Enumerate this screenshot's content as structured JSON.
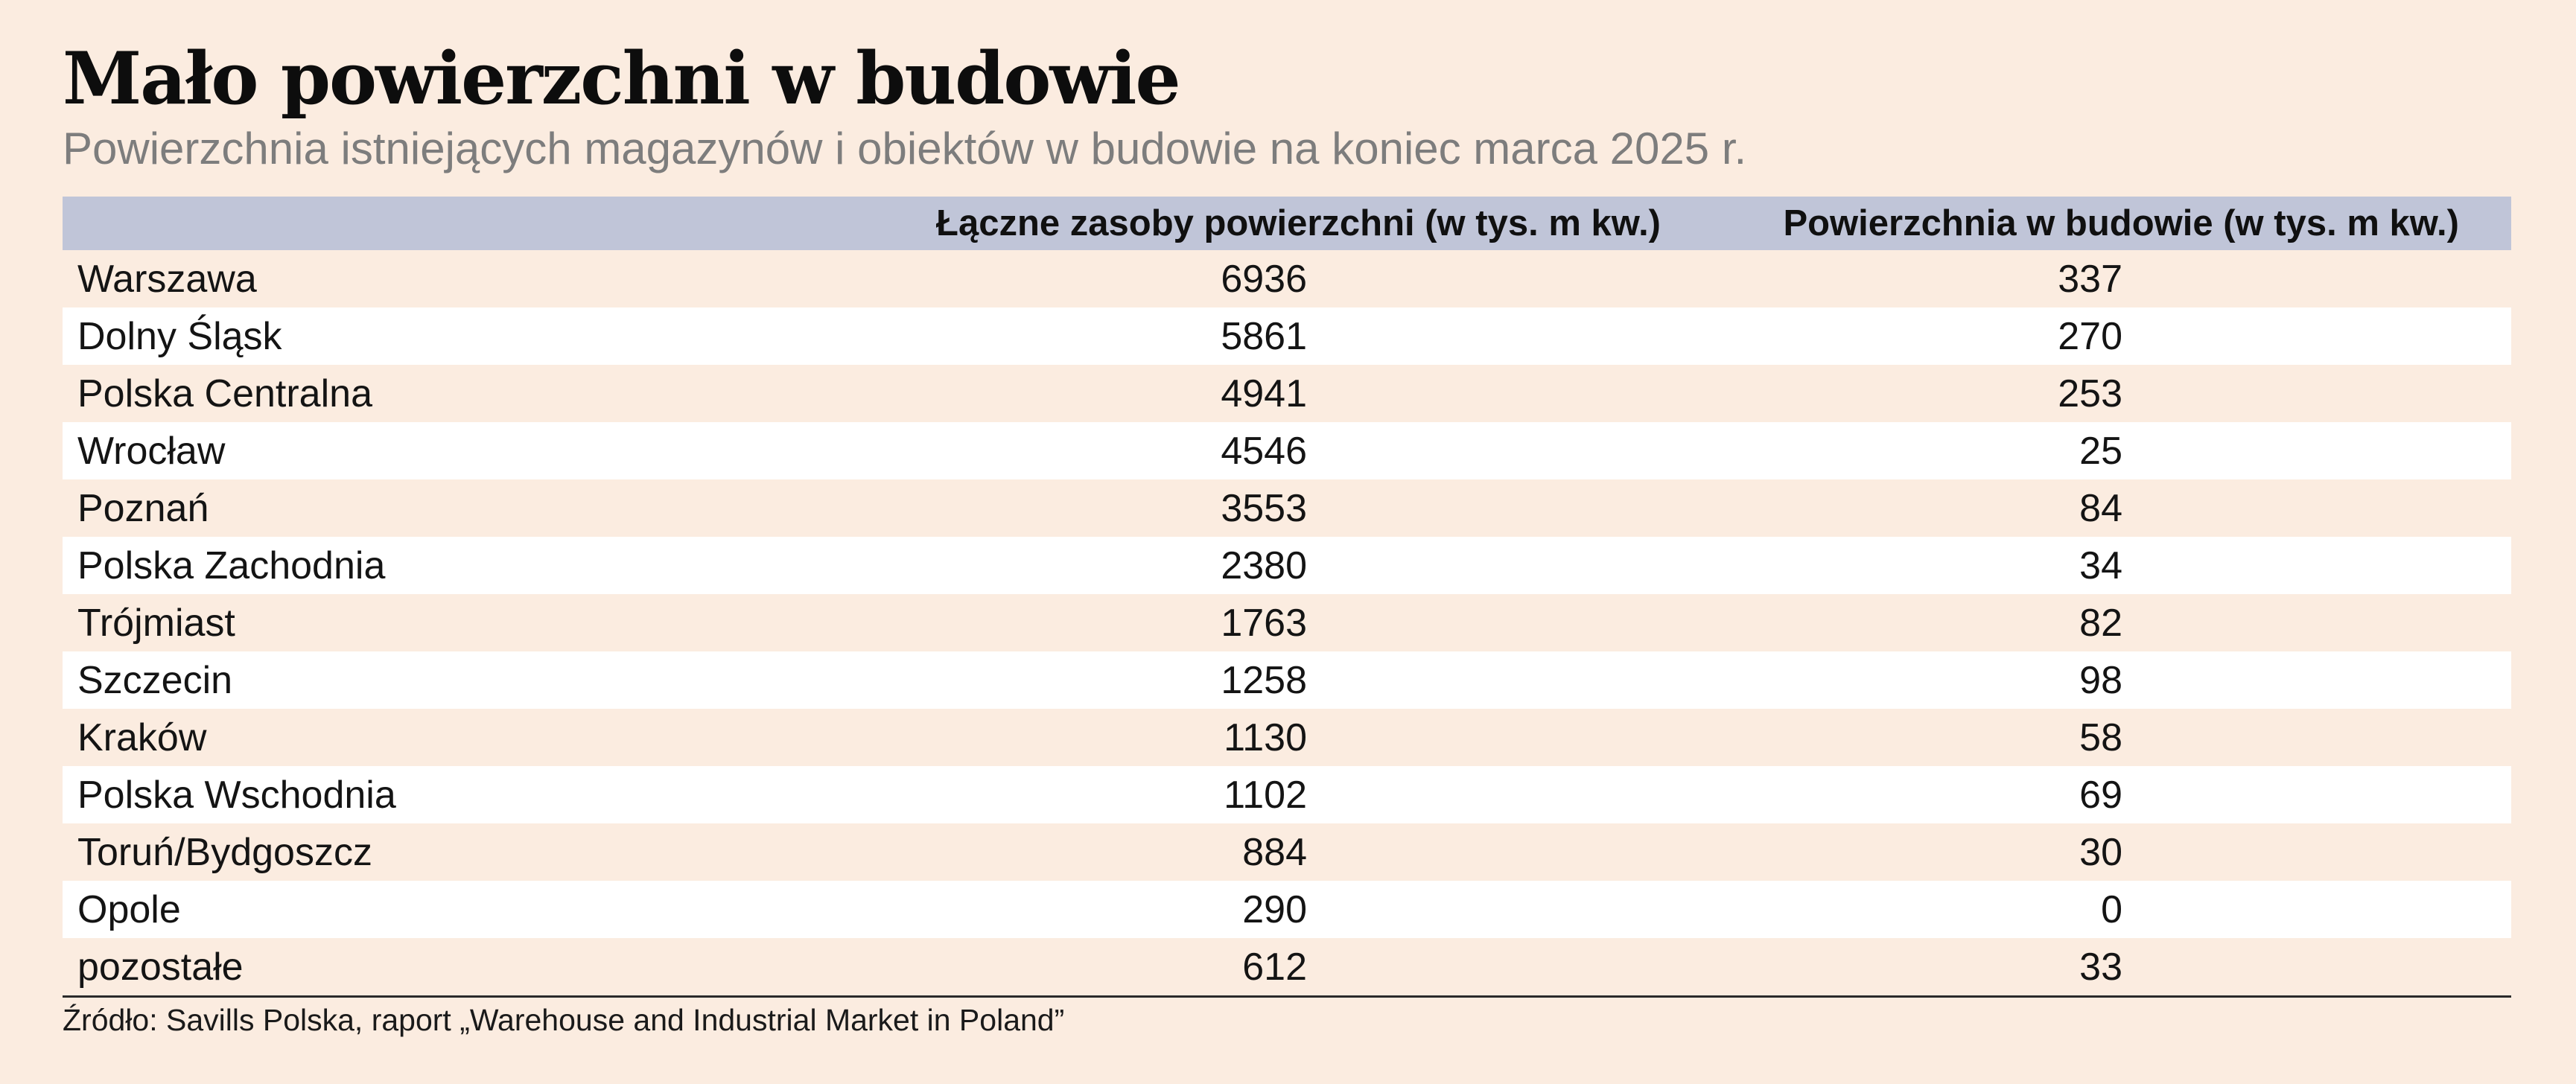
{
  "chart_data": {
    "type": "table",
    "title": "Mało powierzchni w budowie",
    "subtitle": "Powierzchnia istniejących magazynów i obiektów w budowie na koniec marca 2025 r.",
    "columns": [
      "",
      "Łączne zasoby powierzchni (w tys. m kw.)",
      "Powierzchnia w budowie (w tys. m kw.)"
    ],
    "rows": [
      {
        "region": "Warszawa",
        "total": "6936",
        "under_construction": "337"
      },
      {
        "region": "Dolny Śląsk",
        "total": "5861",
        "under_construction": "270"
      },
      {
        "region": "Polska Centralna",
        "total": "4941",
        "under_construction": "253"
      },
      {
        "region": "Wrocław",
        "total": "4546",
        "under_construction": "25"
      },
      {
        "region": "Poznań",
        "total": "3553",
        "under_construction": "84"
      },
      {
        "region": "Polska Zachodnia",
        "total": "2380",
        "under_construction": "34"
      },
      {
        "region": "Trójmiast",
        "total": "1763",
        "under_construction": "82"
      },
      {
        "region": "Szczecin",
        "total": "1258",
        "under_construction": "98"
      },
      {
        "region": "Kraków",
        "total": "1130",
        "under_construction": "58"
      },
      {
        "region": "Polska Wschodnia",
        "total": "1102",
        "under_construction": "69"
      },
      {
        "region": "Toruń/Bydgoszcz",
        "total": "884",
        "under_construction": "30"
      },
      {
        "region": "Opole",
        "total": "290",
        "under_construction": "0"
      },
      {
        "region": "pozostałe",
        "total": "612",
        "under_construction": "33"
      }
    ],
    "source": "Źródło: Savills Polska, raport „Warehouse and Industrial Market in Poland”"
  },
  "colors": {
    "background": "#fbece0",
    "header": "#c0c5d8",
    "alt_row": "#ffffff",
    "subtitle": "#7d7d7d"
  }
}
